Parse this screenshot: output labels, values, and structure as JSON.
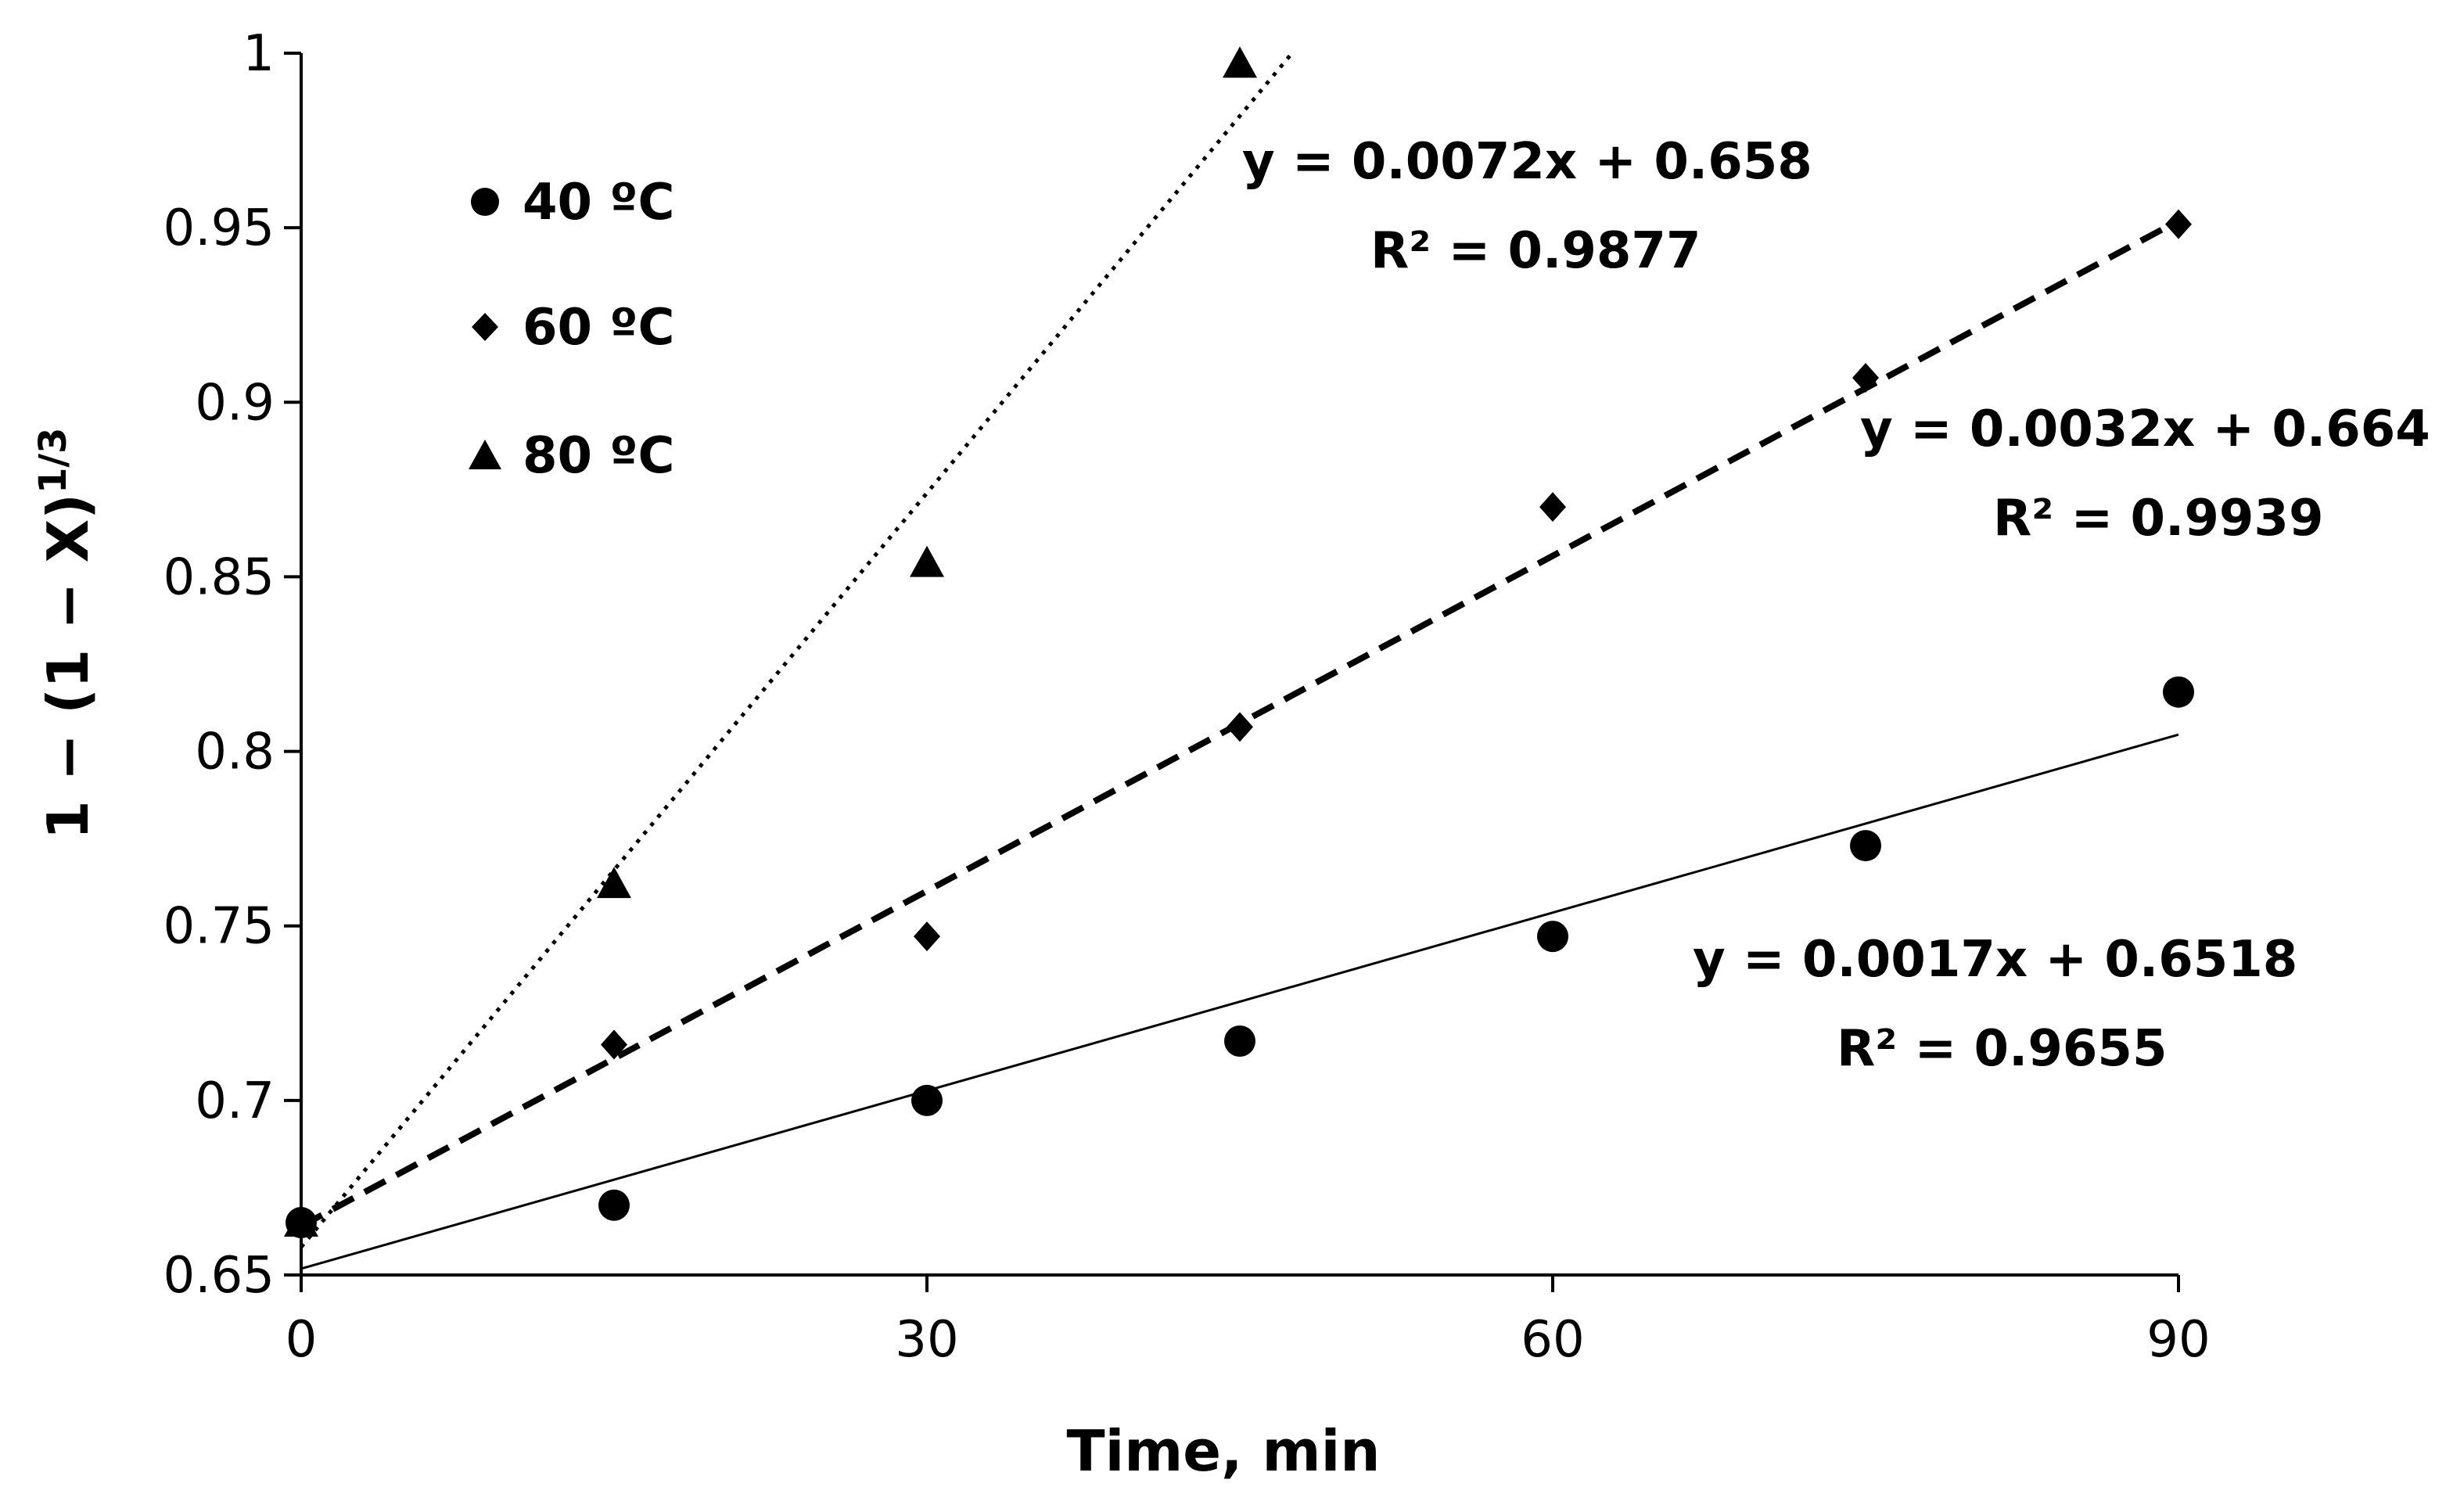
{
  "chart_data": {
    "type": "scatter",
    "title": "",
    "xlabel": "Time, min",
    "ylabel": "1 − (1 − X)",
    "ylabel_sup": "1/3",
    "xlim": [
      0,
      90
    ],
    "ylim": [
      0.65,
      1.0
    ],
    "xticks": [
      0,
      30,
      60,
      90
    ],
    "xtick_labels": [
      "0",
      "30",
      "60",
      "90"
    ],
    "yticks": [
      0.65,
      0.7,
      0.75,
      0.8,
      0.85,
      0.9,
      0.95,
      1.0
    ],
    "ytick_labels": [
      "0.65",
      "0.7",
      "0.75",
      "0.8",
      "0.85",
      "0.9",
      "0.95",
      "1"
    ],
    "grid": false,
    "legend_position": "top-left",
    "series": [
      {
        "name": "40 ºC",
        "marker": "circle",
        "line_style": "solid",
        "x": [
          0,
          15,
          30,
          45,
          60,
          75,
          90
        ],
        "y": [
          0.665,
          0.67,
          0.7,
          0.717,
          0.747,
          0.773,
          0.817
        ],
        "fit": {
          "slope": 0.0017,
          "intercept": 0.6518,
          "x_range": [
            0,
            90
          ]
        },
        "equation": "y = 0.0017x + 0.6518",
        "r2": "R² = 0.9655"
      },
      {
        "name": "60 ºC",
        "marker": "diamond",
        "line_style": "dashed",
        "x": [
          0,
          15,
          30,
          45,
          60,
          75,
          90
        ],
        "y": [
          0.665,
          0.716,
          0.747,
          0.807,
          0.87,
          0.907,
          0.951
        ],
        "fit": {
          "slope": 0.0032,
          "intercept": 0.664,
          "x_range": [
            0,
            90
          ]
        },
        "equation": "y = 0.0032x + 0.664",
        "r2": "R² = 0.9939"
      },
      {
        "name": "80 ºC",
        "marker": "triangle",
        "line_style": "dotted",
        "x": [
          0,
          15,
          30,
          45
        ],
        "y": [
          0.665,
          0.762,
          0.854,
          0.997
        ],
        "fit": {
          "slope": 0.0072,
          "intercept": 0.658,
          "x_range": [
            0,
            47.5
          ]
        },
        "equation": "y = 0.0072x + 0.658",
        "r2": "R² = 0.9877"
      }
    ]
  }
}
